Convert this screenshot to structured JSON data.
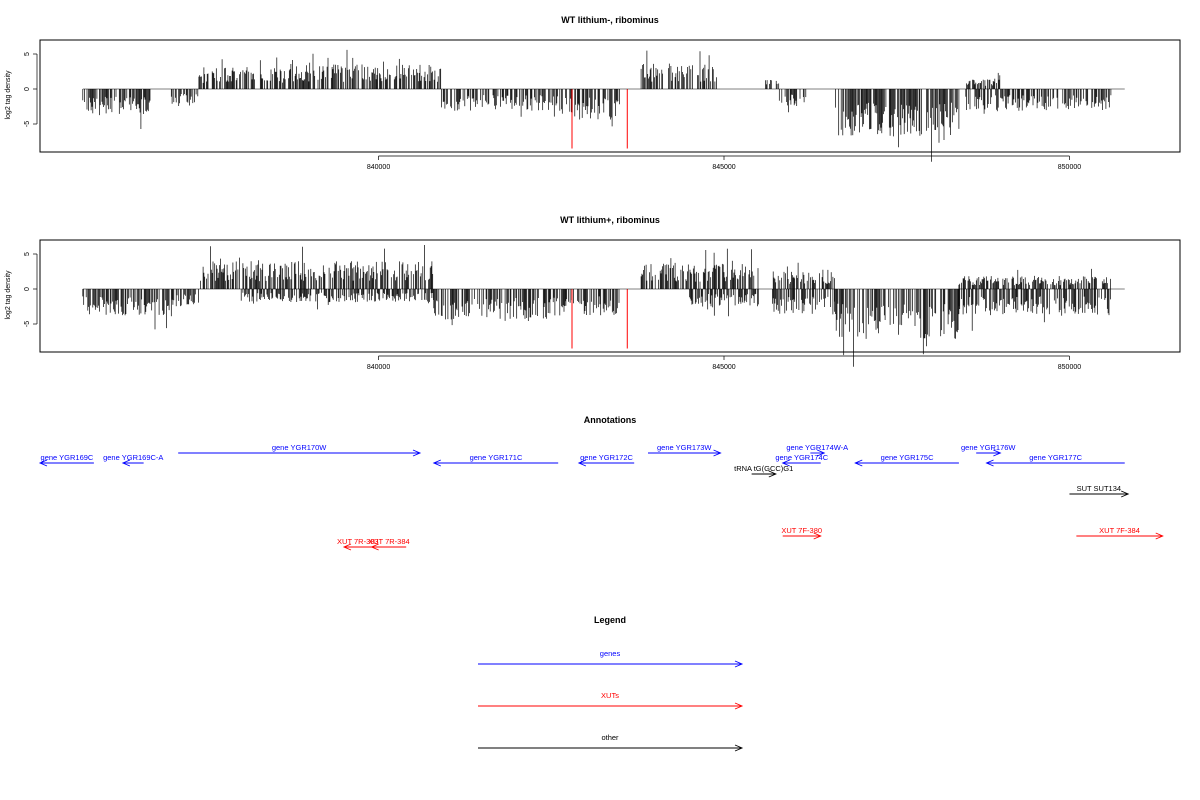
{
  "colors": {
    "genes": "#0000ff",
    "xuts": "#ff0000",
    "other": "#000000",
    "bar": "#000000"
  },
  "chart_data": [
    {
      "type": "bar",
      "title": "WT lithium-, ribominus",
      "ylabel": "log2 tag density",
      "yticks": [
        "-5",
        "0",
        "5"
      ],
      "ylim": [
        -9,
        7
      ],
      "xlim": [
        835100,
        851600
      ],
      "xticks": [
        {
          "value": 840000,
          "label": "840000"
        },
        {
          "value": 845000,
          "label": "845000"
        },
        {
          "value": 850000,
          "label": "850000"
        }
      ],
      "segments": [
        {
          "start": 835720,
          "end": 836700,
          "type": "neg",
          "amp": 3
        },
        {
          "start": 837000,
          "end": 837400,
          "type": "neg",
          "amp": 2
        },
        {
          "start": 837400,
          "end": 838800,
          "type": "pos",
          "amp": 2.5
        },
        {
          "start": 838800,
          "end": 840900,
          "type": "pos",
          "amp": 2.8
        },
        {
          "start": 840900,
          "end": 842600,
          "type": "neg",
          "amp": 2.5
        },
        {
          "start": 842600,
          "end": 843500,
          "type": "neg",
          "amp": 3.5
        },
        {
          "start": 843800,
          "end": 844900,
          "type": "pos",
          "amp": 3
        },
        {
          "start": 845600,
          "end": 845800,
          "type": "pos",
          "amp": 1.5
        },
        {
          "start": 845800,
          "end": 846200,
          "type": "neg",
          "amp": 2
        },
        {
          "start": 846600,
          "end": 848400,
          "type": "neg",
          "amp": 5.5
        },
        {
          "start": 848500,
          "end": 849000,
          "type": "pos",
          "amp": 1.2
        },
        {
          "start": 848500,
          "end": 850600,
          "type": "neg",
          "amp": 2.5
        }
      ],
      "highlights": [
        {
          "x": 842800,
          "value": -8.5
        },
        {
          "x": 843600,
          "value": -8.5
        }
      ]
    },
    {
      "type": "bar",
      "title": "WT lithium+, ribominus",
      "ylabel": "log2 tag density",
      "yticks": [
        "-5",
        "0",
        "5"
      ],
      "ylim": [
        -9,
        7
      ],
      "xlim": [
        835100,
        851600
      ],
      "xticks": [
        {
          "value": 840000,
          "label": "840000"
        },
        {
          "value": 845000,
          "label": "845000"
        },
        {
          "value": 850000,
          "label": "850000"
        }
      ],
      "segments": [
        {
          "start": 835720,
          "end": 837000,
          "type": "neg",
          "amp": 3
        },
        {
          "start": 837000,
          "end": 837400,
          "type": "neg",
          "amp": 2
        },
        {
          "start": 837400,
          "end": 840800,
          "type": "pos",
          "amp": 3.2
        },
        {
          "start": 838000,
          "end": 840800,
          "type": "neg",
          "amp": 1.5
        },
        {
          "start": 840800,
          "end": 842700,
          "type": "neg",
          "amp": 3.5
        },
        {
          "start": 842700,
          "end": 843500,
          "type": "neg",
          "amp": 3
        },
        {
          "start": 843800,
          "end": 845500,
          "type": "pos",
          "amp": 3
        },
        {
          "start": 844500,
          "end": 845500,
          "type": "neg",
          "amp": 2
        },
        {
          "start": 845700,
          "end": 846600,
          "type": "pos",
          "amp": 2
        },
        {
          "start": 845700,
          "end": 846600,
          "type": "neg",
          "amp": 3
        },
        {
          "start": 846600,
          "end": 848400,
          "type": "neg",
          "amp": 6
        },
        {
          "start": 848400,
          "end": 850600,
          "type": "neg",
          "amp": 3
        },
        {
          "start": 848400,
          "end": 850600,
          "type": "pos",
          "amp": 1.5
        }
      ],
      "highlights": [
        {
          "x": 842800,
          "value": -8.5
        },
        {
          "x": 843600,
          "value": -8.5
        }
      ]
    }
  ],
  "annotations": {
    "title": "Annotations",
    "items": [
      {
        "label": "gene YGR169C",
        "category": "genes",
        "start": 835100,
        "end": 835880,
        "strand": "-",
        "row": 1
      },
      {
        "label": "gene YGR169C-A",
        "category": "genes",
        "start": 836300,
        "end": 836600,
        "strand": "-",
        "row": 1
      },
      {
        "label": "gene YGR170W",
        "category": "genes",
        "start": 837100,
        "end": 840600,
        "strand": "+",
        "row": 0
      },
      {
        "label": "gene YGR171C",
        "category": "genes",
        "start": 840800,
        "end": 842600,
        "strand": "-",
        "row": 1
      },
      {
        "label": "gene YGR172C",
        "category": "genes",
        "start": 842900,
        "end": 843700,
        "strand": "-",
        "row": 1
      },
      {
        "label": "gene YGR173W",
        "category": "genes",
        "start": 843900,
        "end": 844950,
        "strand": "+",
        "row": 0
      },
      {
        "label": "tRNA tG(GCC)G1",
        "category": "other",
        "start": 845400,
        "end": 845750,
        "strand": "+",
        "row": 2
      },
      {
        "label": "gene YGR174C",
        "category": "genes",
        "start": 845850,
        "end": 846400,
        "strand": "-",
        "row": 1
      },
      {
        "label": "gene YGR174W-A",
        "category": "genes",
        "start": 846250,
        "end": 846450,
        "strand": "+",
        "row": 0
      },
      {
        "label": "gene YGR175C",
        "category": "genes",
        "start": 846900,
        "end": 848400,
        "strand": "-",
        "row": 1
      },
      {
        "label": "gene YGR176W",
        "category": "genes",
        "start": 848650,
        "end": 849000,
        "strand": "+",
        "row": 0
      },
      {
        "label": "gene YGR177C",
        "category": "genes",
        "start": 848800,
        "end": 850800,
        "strand": "-",
        "row": 1
      },
      {
        "label": "SUT SUT134",
        "category": "other",
        "start": 850000,
        "end": 850850,
        "strand": "+",
        "row": 3
      },
      {
        "label": "XUT 7R-383",
        "category": "xuts",
        "start": 839500,
        "end": 839900,
        "strand": "-",
        "row": 5
      },
      {
        "label": "XUT 7R-384",
        "category": "xuts",
        "start": 839900,
        "end": 840400,
        "strand": "-",
        "row": 5
      },
      {
        "label": "XUT 7F-380",
        "category": "xuts",
        "start": 845850,
        "end": 846400,
        "strand": "+",
        "row": 4
      },
      {
        "label": "XUT 7F-384",
        "category": "xuts",
        "start": 850100,
        "end": 851350,
        "strand": "+",
        "row": 4
      }
    ]
  },
  "legend": {
    "title": "Legend",
    "items": [
      {
        "label": "genes",
        "category": "genes"
      },
      {
        "label": "XUTs",
        "category": "xuts"
      },
      {
        "label": "other",
        "category": "other"
      }
    ]
  }
}
